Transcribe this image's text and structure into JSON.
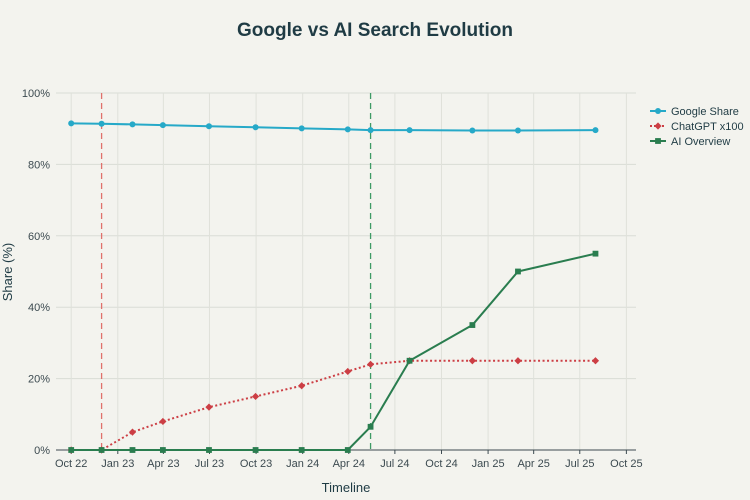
{
  "chart_data": {
    "type": "line",
    "title": "Google vs AI Search Evolution",
    "xlabel": "Timeline",
    "ylabel": "Share (%)",
    "ylim": [
      0,
      100
    ],
    "y_ticks": [
      0,
      20,
      40,
      60,
      80,
      100
    ],
    "y_tick_labels": [
      "0%",
      "20%",
      "40%",
      "60%",
      "80%",
      "100%"
    ],
    "x_range": [
      "2022-09-01",
      "2025-10-20"
    ],
    "x_ticks": [
      "2022-10-01",
      "2023-01-01",
      "2023-04-01",
      "2023-07-01",
      "2023-10-01",
      "2024-01-01",
      "2024-04-01",
      "2024-07-01",
      "2024-10-01",
      "2025-01-01",
      "2025-04-01",
      "2025-07-01",
      "2025-10-01"
    ],
    "x_tick_labels": [
      "Oct 22",
      "Jan 23",
      "Apr 23",
      "Jul 23",
      "Oct 23",
      "Jan 24",
      "Apr 24",
      "Jul 24",
      "Oct 24",
      "Jan 25",
      "Apr 25",
      "Jul 25",
      "Oct 25"
    ],
    "grid": true,
    "legend_position": "top-right",
    "reference_lines": [
      {
        "x": "2022-11-30",
        "color": "#e0706b"
      },
      {
        "x": "2024-05-14",
        "color": "#3e9a65"
      }
    ],
    "series": [
      {
        "name": "Google Share",
        "color": "#26a9c8",
        "marker": "circle",
        "dash": "solid",
        "x": [
          "2022-10-01",
          "2022-11-30",
          "2023-01-30",
          "2023-03-31",
          "2023-06-30",
          "2023-09-30",
          "2023-12-30",
          "2024-03-30",
          "2024-05-14",
          "2024-07-30",
          "2024-12-01",
          "2025-03-01",
          "2025-08-01"
        ],
        "values": [
          91.5,
          91.4,
          91.2,
          91.0,
          90.7,
          90.4,
          90.1,
          89.8,
          89.6,
          89.6,
          89.5,
          89.5,
          89.6
        ]
      },
      {
        "name": "ChatGPT x100",
        "color": "#cc3e44",
        "marker": "diamond",
        "dash": "dotted",
        "x": [
          "2022-10-01",
          "2022-11-30",
          "2023-01-30",
          "2023-03-31",
          "2023-06-30",
          "2023-09-30",
          "2023-12-30",
          "2024-03-30",
          "2024-05-14",
          "2024-07-30",
          "2024-12-01",
          "2025-03-01",
          "2025-08-01"
        ],
        "values": [
          0,
          0,
          5,
          8,
          12,
          15,
          18,
          22,
          24,
          25,
          25,
          25,
          25
        ]
      },
      {
        "name": "AI Overview",
        "color": "#2a7d4f",
        "marker": "square",
        "dash": "solid",
        "x": [
          "2022-10-01",
          "2022-11-30",
          "2023-01-30",
          "2023-03-31",
          "2023-06-30",
          "2023-09-30",
          "2023-12-30",
          "2024-03-30",
          "2024-05-14",
          "2024-07-30",
          "2024-12-01",
          "2025-03-01",
          "2025-08-01"
        ],
        "values": [
          0,
          0,
          0,
          0,
          0,
          0,
          0,
          0,
          6.5,
          25,
          35,
          50,
          55
        ]
      }
    ]
  }
}
